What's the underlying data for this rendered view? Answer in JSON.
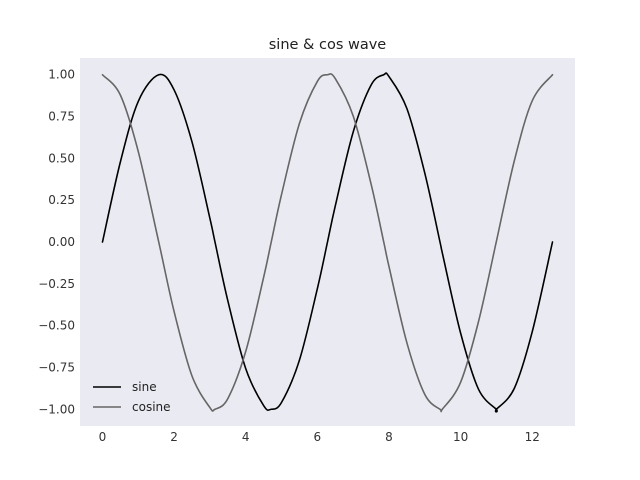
{
  "chart_data": {
    "type": "line",
    "title": "sine & cos wave",
    "xlabel": "",
    "ylabel": "",
    "xlim": [
      -0.628,
      13.195
    ],
    "ylim": [
      -1.1,
      1.1
    ],
    "x_ticks": [
      0,
      2,
      4,
      6,
      8,
      10,
      12
    ],
    "x_tick_labels": [
      "0",
      "2",
      "4",
      "6",
      "8",
      "10",
      "12"
    ],
    "y_ticks": [
      1.0,
      0.75,
      0.5,
      0.25,
      0.0,
      -0.25,
      -0.5,
      -0.75,
      -1.0
    ],
    "y_tick_labels": [
      "1.00",
      "0.75",
      "0.50",
      "0.25",
      "0.00",
      "−0.25",
      "−0.50",
      "−0.75",
      "−1.00"
    ],
    "grid": false,
    "legend_position": "lower-left",
    "background_color": "#eaeaf2",
    "x": [
      0.0,
      0.5,
      1.0,
      1.5708,
      2.0,
      2.5,
      3.0,
      3.1416,
      3.5,
      4.0,
      4.5,
      4.7124,
      5.0,
      5.5,
      6.0,
      6.2832,
      6.5,
      7.0,
      7.5,
      7.854,
      8.0,
      8.5,
      9.0,
      9.4248,
      9.5,
      10.0,
      10.5,
      10.9956,
      11.0,
      11.5,
      12.0,
      12.5664
    ],
    "series": [
      {
        "name": "sine",
        "color": "#000000",
        "values": [
          0.0,
          0.479,
          0.841,
          1.0,
          0.909,
          0.598,
          0.141,
          0.0,
          -0.351,
          -0.757,
          -0.978,
          -1.0,
          -0.959,
          -0.706,
          -0.279,
          0.0,
          0.215,
          0.657,
          0.938,
          1.0,
          0.989,
          0.798,
          0.412,
          0.0,
          -0.075,
          -0.544,
          -0.88,
          -1.0,
          -1.0,
          -0.875,
          -0.537,
          0.0
        ]
      },
      {
        "name": "cosine",
        "color": "#666666",
        "values": [
          1.0,
          0.878,
          0.54,
          0.0,
          -0.416,
          -0.801,
          -0.99,
          -1.0,
          -0.936,
          -0.654,
          -0.211,
          0.0,
          0.284,
          0.709,
          0.96,
          1.0,
          0.977,
          0.754,
          0.347,
          0.0,
          -0.146,
          -0.602,
          -0.911,
          -1.0,
          -0.997,
          -0.839,
          -0.476,
          0.0,
          0.004,
          0.485,
          0.844,
          1.0
        ]
      }
    ]
  }
}
